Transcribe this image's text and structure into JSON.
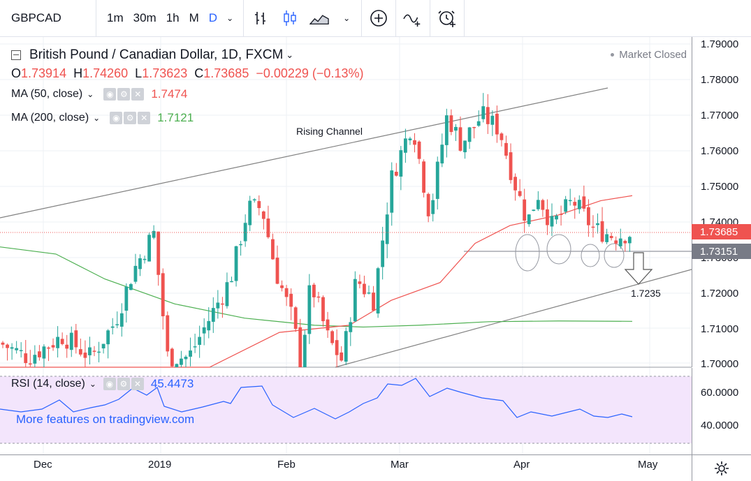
{
  "toolbar": {
    "symbol": "GBPCAD",
    "intervals": [
      "1m",
      "30m",
      "1h",
      "M",
      "D"
    ],
    "active_interval": "D",
    "icons": [
      "bar-style-icon",
      "candle-style-icon",
      "area-style-icon",
      "compare-plus-icon",
      "indicators-icon",
      "alert-icon"
    ]
  },
  "legend": {
    "title": "British Pound / Canadian Dollar, 1D, FXCM",
    "open_label": "O",
    "open": "1.73914",
    "high_label": "H",
    "high": "1.74260",
    "low_label": "L",
    "low": "1.73623",
    "close_label": "C",
    "close": "1.73685",
    "change": "−0.00229 (−0.13%)",
    "ma50_label": "MA (50, close)",
    "ma50_value": "1.7474",
    "ma200_label": "MA (200, close)",
    "ma200_value": "1.7121",
    "market_status": "Market Closed"
  },
  "colors": {
    "up": "#26a69a",
    "down": "#ef5350",
    "ma50": "#ef5350",
    "ma200": "#4caf50",
    "rsi": "#2962ff",
    "accent": "#2962ff"
  },
  "price_axis": {
    "ticks": [
      "1.79000",
      "1.78000",
      "1.77000",
      "1.76000",
      "1.75000",
      "1.74000",
      "1.73000",
      "1.72000",
      "1.71000",
      "1.70000"
    ],
    "last_price_tag": "1.73685",
    "support_tag": "1.73151"
  },
  "annotations": {
    "channel_label": "Rising Channel",
    "target_label": "1.7235"
  },
  "rsi": {
    "label": "RSI (14, close)",
    "value": "45.4473",
    "ticks": [
      "60.0000",
      "40.0000"
    ]
  },
  "time_axis": [
    "Dec",
    "2019",
    "Feb",
    "Mar",
    "Apr",
    "May"
  ],
  "watermark": "More features on tradingview.com"
}
